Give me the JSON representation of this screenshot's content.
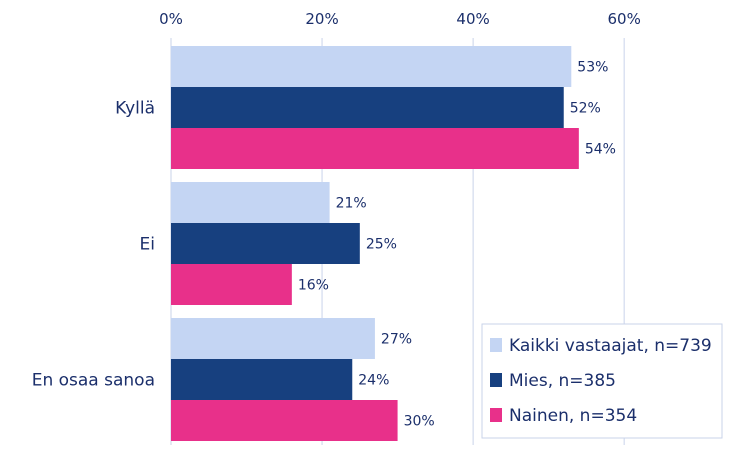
{
  "colors": {
    "text": "#1b2f6b",
    "grid": "#c9d3ea",
    "legend_border": "#c9d3ea",
    "background": "#ffffff"
  },
  "chart_data": {
    "type": "bar",
    "orientation": "horizontal",
    "title": "",
    "xlabel": "",
    "ylabel": "",
    "xlim": [
      0,
      76
    ],
    "xticks": [
      0,
      20,
      40,
      60
    ],
    "xtick_labels": [
      "0%",
      "20%",
      "40%",
      "60%"
    ],
    "x_axis_position": "top",
    "grid": true,
    "legend_position": "bottom-right",
    "categories": [
      "Kyllä",
      "Ei",
      "En osaa sanoa"
    ],
    "series": [
      {
        "name": "Kaikki vastaajat, n=739",
        "color": "#c4d5f3",
        "values": [
          53,
          21,
          27
        ],
        "labels": [
          "53%",
          "21%",
          "27%"
        ]
      },
      {
        "name": "Mies, n=385",
        "color": "#17407f",
        "values": [
          52,
          25,
          24
        ],
        "labels": [
          "52%",
          "25%",
          "24%"
        ]
      },
      {
        "name": "Nainen, n=354",
        "color": "#e8308a",
        "values": [
          54,
          16,
          30
        ],
        "labels": [
          "54%",
          "16%",
          "30%"
        ]
      }
    ]
  }
}
